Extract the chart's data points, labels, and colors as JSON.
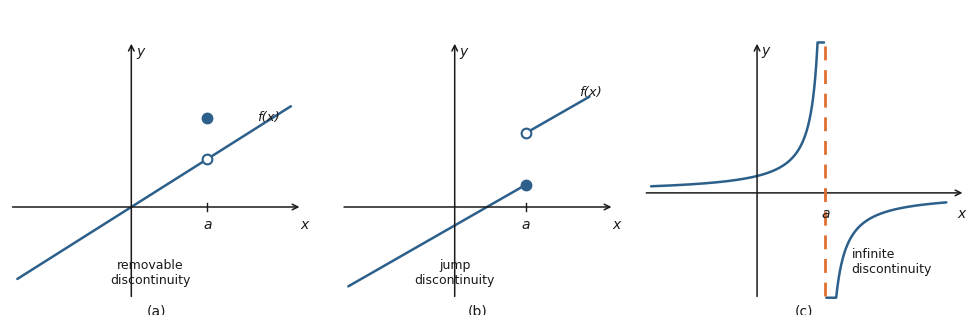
{
  "fig_width": 9.75,
  "fig_height": 3.15,
  "bg_color": "#ffffff",
  "line_color": "#2c5f8a",
  "axis_color": "#1a1a1a",
  "dashed_color": "#e07030",
  "label_a": "a",
  "label_x": "x",
  "label_y": "y",
  "fx_label": "f(x)",
  "panel_a_label": "(a)",
  "panel_b_label": "(b)",
  "panel_c_label": "(c)",
  "text_removable": "removable\ndiscontinuity",
  "text_jump": "jump\ndiscontinuity",
  "text_infinite": "infinite\ndiscontinuity"
}
